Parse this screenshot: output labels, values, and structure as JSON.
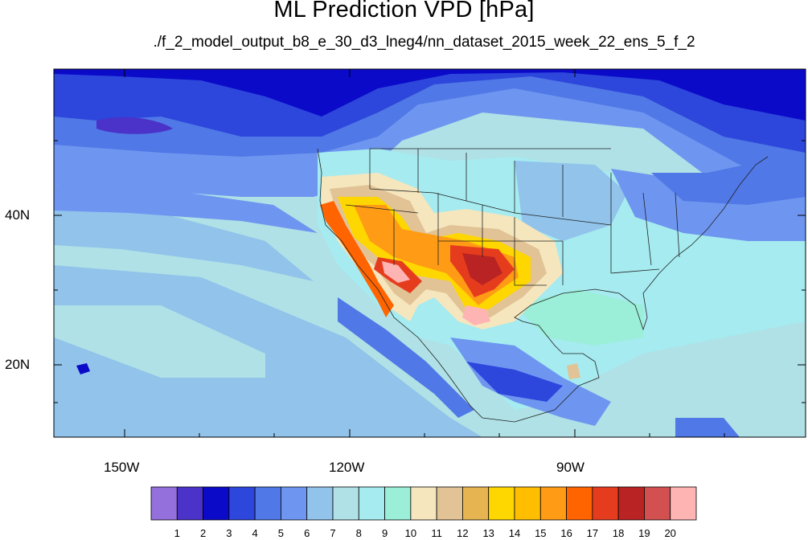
{
  "title": "ML Prediction VPD [hPa]",
  "subtitle": "./f_2_model_output_b8_e_30_d3_lneg4/nn_dataset_2015_week_22_ens_5_f_2",
  "axes": {
    "lon_labels": [
      "150W",
      "120W",
      "90W"
    ],
    "lat_labels": [
      "40N",
      "20N"
    ]
  },
  "colorbar": {
    "colors": [
      "#9370db",
      "#4b32c8",
      "#0a0ac8",
      "#2d46dc",
      "#5078e6",
      "#6e96f0",
      "#91c3eb",
      "#afe1e6",
      "#a5ebf0",
      "#9beed7",
      "#f5e6be",
      "#e1c396",
      "#e6b450",
      "#ffd700",
      "#ffbf00",
      "#ff9b14",
      "#ff6400",
      "#e63c1e",
      "#b92323",
      "#d25050",
      "#ffb4b4"
    ],
    "labels": [
      "1",
      "2",
      "3",
      "4",
      "5",
      "6",
      "7",
      "8",
      "9",
      "10",
      "11",
      "12",
      "13",
      "14",
      "15",
      "16",
      "17",
      "18",
      "19",
      "20"
    ]
  }
}
